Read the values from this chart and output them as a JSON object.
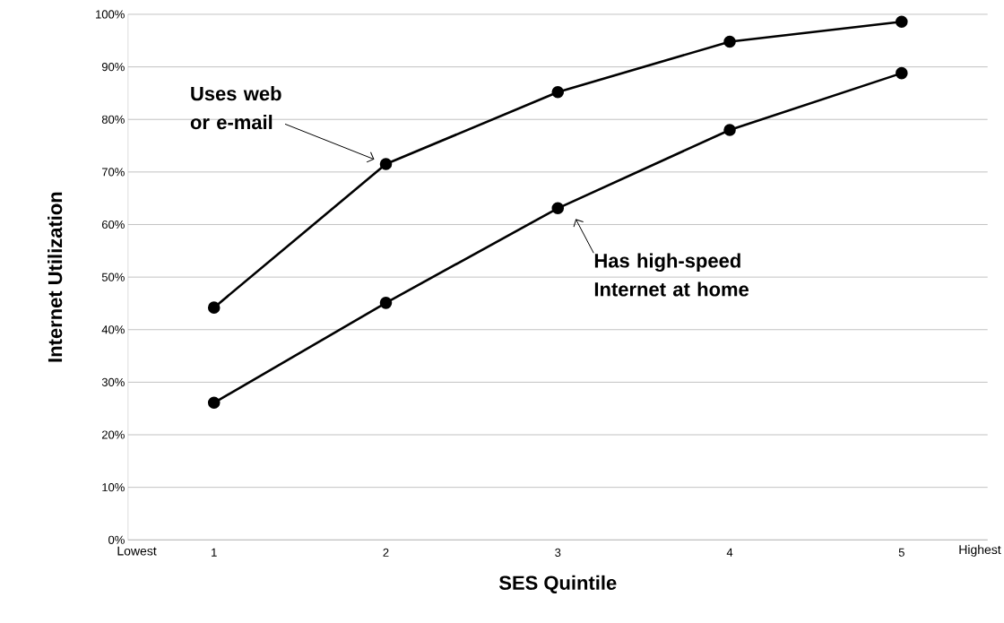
{
  "chart_data": {
    "type": "line",
    "xlabel": "SES Quintile",
    "ylabel": "Internet  Utilization",
    "categories": [
      "1",
      "2",
      "3",
      "4",
      "5"
    ],
    "series": [
      {
        "color": "#000000",
        "values": [
          44.2,
          71.5,
          85.2,
          94.8,
          98.6
        ]
      },
      {
        "color": "#000000",
        "values": [
          26.1,
          45.1,
          63.1,
          78.0,
          88.8
        ]
      }
    ],
    "ylim": [
      0,
      100
    ],
    "yticks": [
      {
        "value": 0,
        "label": "0%"
      },
      {
        "value": 10,
        "label": "10%"
      },
      {
        "value": 20,
        "label": "20%"
      },
      {
        "value": 30,
        "label": "30%"
      },
      {
        "value": 40,
        "label": "40%"
      },
      {
        "value": 50,
        "label": "50%"
      },
      {
        "value": 60,
        "label": "60%"
      },
      {
        "value": 70,
        "label": "70%"
      },
      {
        "value": 80,
        "label": "80%"
      },
      {
        "value": 90,
        "label": "90%"
      },
      {
        "value": 100,
        "label": "100%"
      }
    ],
    "grid": "y",
    "marker": "circle",
    "line_style": "solid",
    "annotations": [
      "Uses web or e-mail",
      {
        "text": "Has high-speed Internet at home",
        "x": "3",
        "y": 63.1
      },
      "Lowest",
      "Highest"
    ]
  }
}
